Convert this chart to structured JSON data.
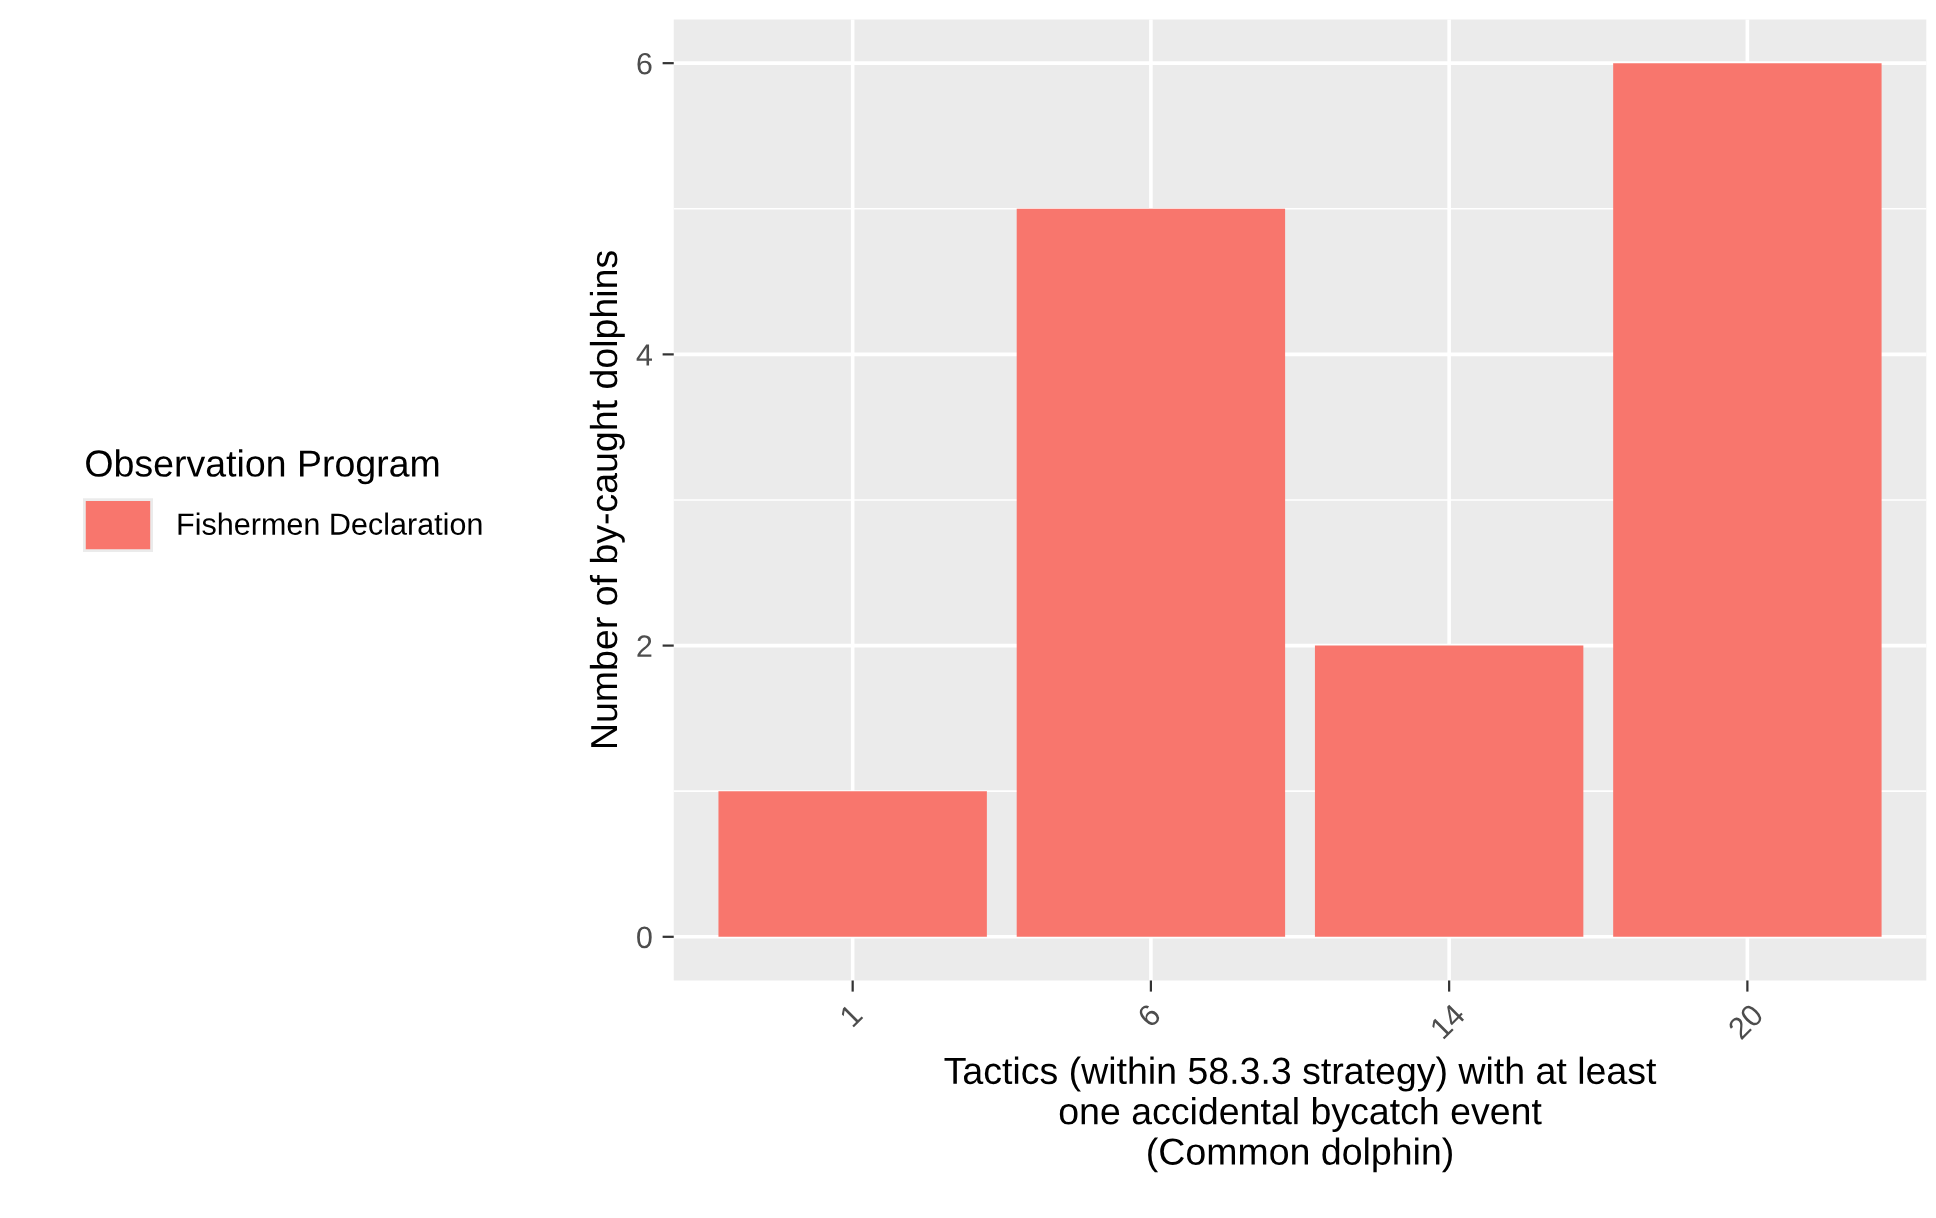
{
  "chart_data": {
    "type": "bar",
    "categories": [
      "1",
      "6",
      "14",
      "20"
    ],
    "series": [
      {
        "name": "Fishermen Declaration",
        "color": "#f8766d",
        "values": [
          1,
          5,
          2,
          6
        ]
      }
    ],
    "xlabel": "Tactics (within 58.3.3 strategy) with at least\none accidental bycatch event\n(Common dolphin)",
    "ylabel": "Number of by-caught dolphins",
    "legend_title": "Observation Program",
    "ylim": [
      -0.3,
      6.3
    ],
    "yticks": [
      0,
      2,
      4,
      6
    ],
    "grid": true,
    "legend": "left"
  }
}
